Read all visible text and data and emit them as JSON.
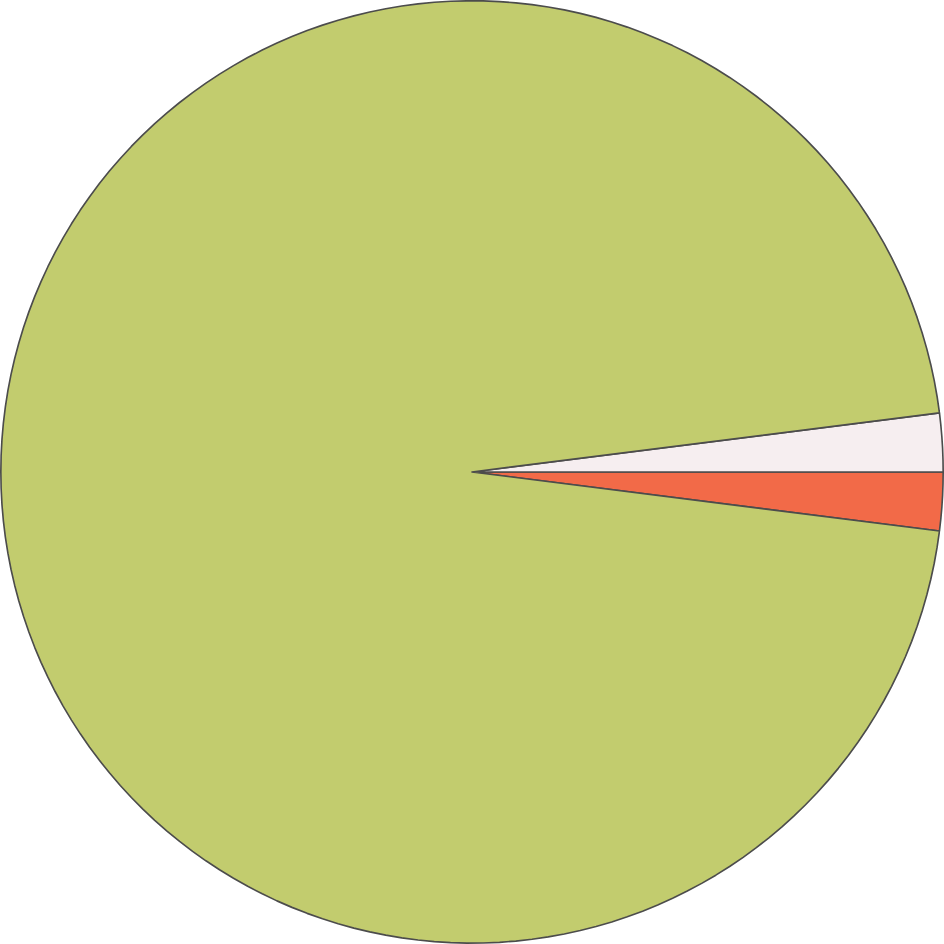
{
  "chart_data": {
    "type": "pie",
    "categories": [
      null,
      null,
      null
    ],
    "values": [
      96,
      2,
      2
    ],
    "colors": [
      "#c2cc6e",
      "#f6eef0",
      "#f26a48"
    ]
  }
}
